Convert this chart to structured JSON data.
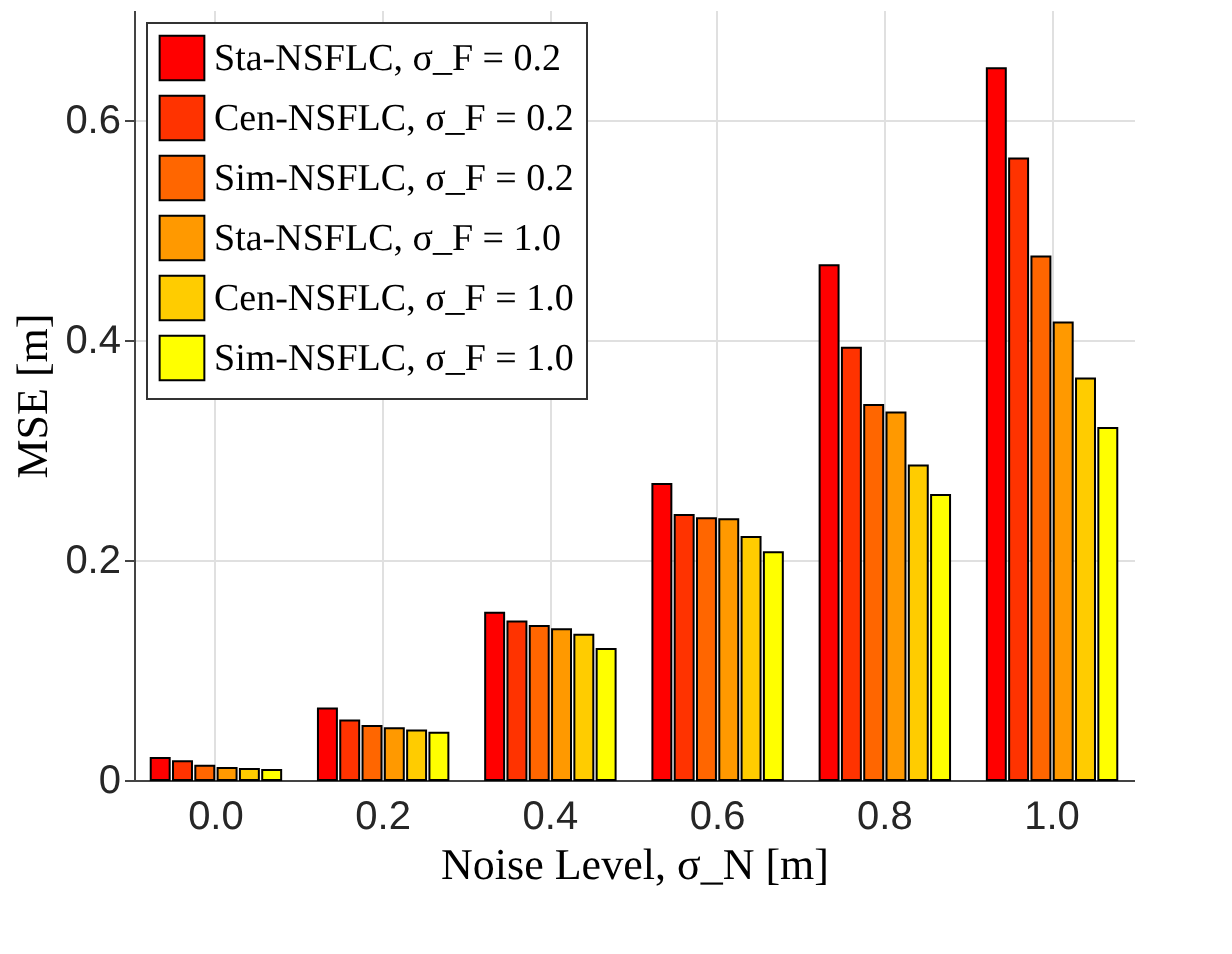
{
  "chart_data": {
    "type": "bar",
    "xlabel": "Noise Level, σ_N [m]",
    "ylabel": "MSE [m]",
    "categories": [
      "0.0",
      "0.2",
      "0.4",
      "0.6",
      "0.8",
      "1.0"
    ],
    "series": [
      {
        "name": "Sta-NSFLC, σ_F = 0.2",
        "color": "#ff0000",
        "values": [
          0.02,
          0.065,
          0.152,
          0.269,
          0.468,
          0.647
        ]
      },
      {
        "name": "Cen-NSFLC, σ_F = 0.2",
        "color": "#ff3300",
        "values": [
          0.017,
          0.054,
          0.144,
          0.241,
          0.393,
          0.565
        ]
      },
      {
        "name": "Sim-NSFLC, σ_F = 0.2",
        "color": "#ff6600",
        "values": [
          0.013,
          0.049,
          0.14,
          0.238,
          0.341,
          0.476
        ]
      },
      {
        "name": "Sta-NSFLC, σ_F = 1.0",
        "color": "#ff9900",
        "values": [
          0.011,
          0.047,
          0.137,
          0.237,
          0.334,
          0.416
        ]
      },
      {
        "name": "Cen-NSFLC, σ_F = 1.0",
        "color": "#ffcc00",
        "values": [
          0.01,
          0.045,
          0.132,
          0.221,
          0.286,
          0.365
        ]
      },
      {
        "name": "Sim-NSFLC, σ_F = 1.0",
        "color": "#ffff00",
        "values": [
          0.009,
          0.043,
          0.119,
          0.207,
          0.259,
          0.32
        ]
      }
    ],
    "ylim": [
      0,
      0.7
    ],
    "yticks": [
      0,
      0.2,
      0.4,
      0.6
    ],
    "grid": true,
    "legend": "top left"
  }
}
